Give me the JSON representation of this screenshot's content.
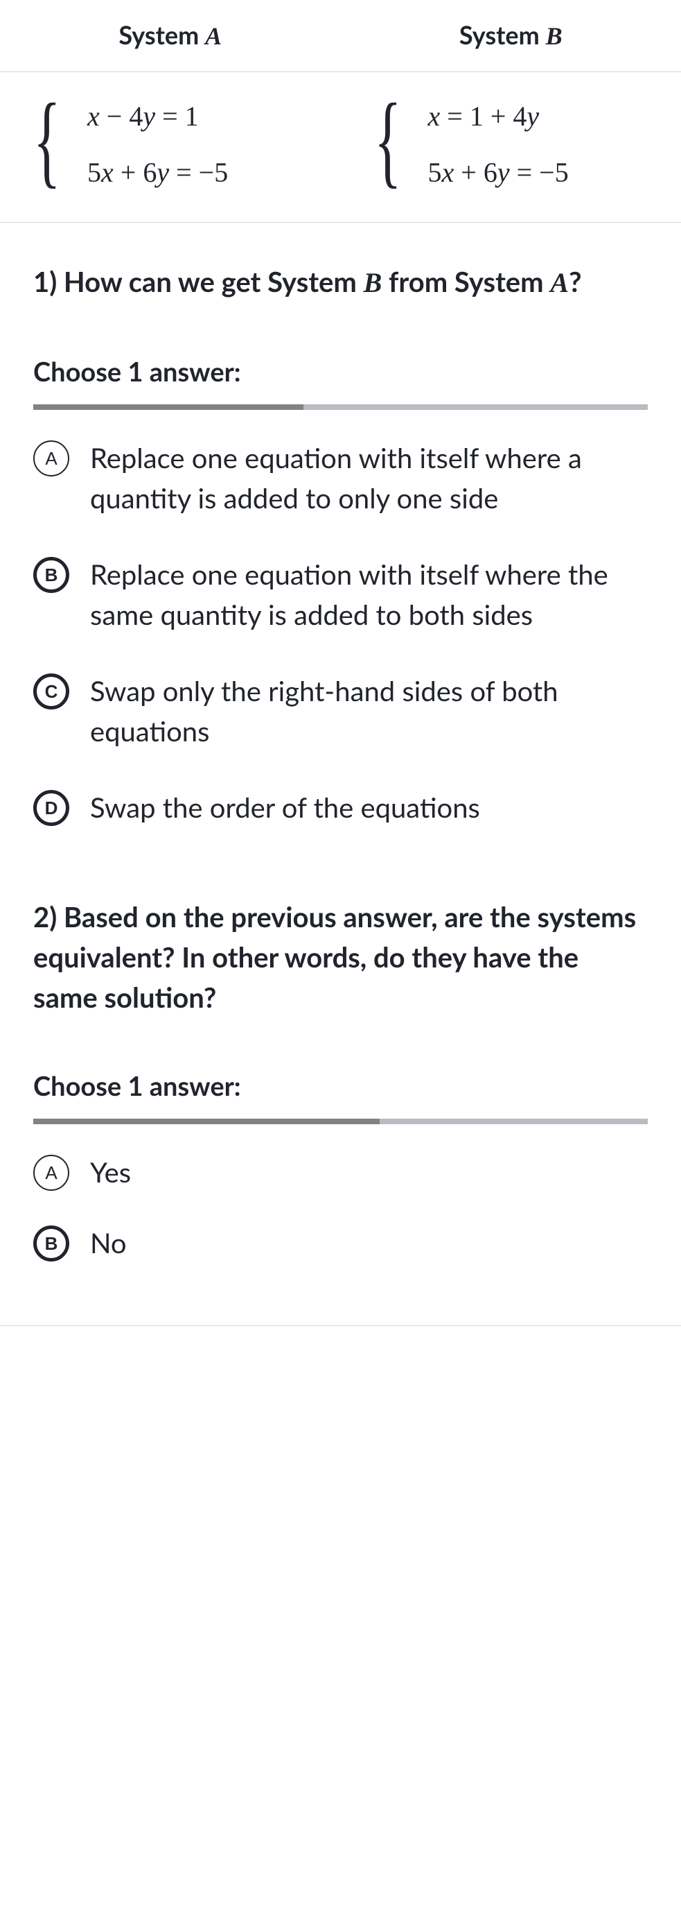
{
  "table": {
    "header_a_prefix": "System ",
    "header_a_var": "A",
    "header_b_prefix": "System ",
    "header_b_var": "B",
    "system_a": {
      "eq1": "x − 4y = 1",
      "eq2": "5x + 6y = −5"
    },
    "system_b": {
      "eq1": "x = 1 + 4y",
      "eq2": "5x + 6y = −5"
    },
    "border_color": "#d6d8da",
    "header_fontsize": 36,
    "eq_fontsize": 40
  },
  "q1": {
    "prefix": "1) How can we get System ",
    "var": "B",
    "mid": " from System ",
    "var2": "A",
    "suffix": "?",
    "choose_label": "Choose 1 answer:",
    "choices": [
      {
        "letter": "A",
        "text": "Replace one equation with itself where a quantity is added to only one side",
        "emphasis": "thin"
      },
      {
        "letter": "B",
        "text": "Replace one equation with itself where the same quantity is added to both sides",
        "emphasis": "thick"
      },
      {
        "letter": "C",
        "text": "Swap only the right-hand sides of both equations",
        "emphasis": "thick"
      },
      {
        "letter": "D",
        "text": "Swap the order of the equations",
        "emphasis": "thick"
      }
    ],
    "rule_dark_width": 390
  },
  "q2": {
    "text": "2) Based on the previous answer, are the systems equivalent? In other words, do they have the same solution?",
    "choose_label": "Choose 1 answer:",
    "choices": [
      {
        "letter": "A",
        "text": "Yes",
        "emphasis": "thin"
      },
      {
        "letter": "B",
        "text": "No",
        "emphasis": "thick"
      }
    ],
    "rule_dark_width": 500
  },
  "colors": {
    "text": "#21242c",
    "rule_light": "#b8bbbf",
    "rule_dark": "#808286",
    "divider": "#d6d8da",
    "background": "#ffffff"
  },
  "typography": {
    "question_fontsize": 40,
    "question_fontweight": 700,
    "choice_fontsize": 40,
    "letter_circle_diameter": 52
  }
}
